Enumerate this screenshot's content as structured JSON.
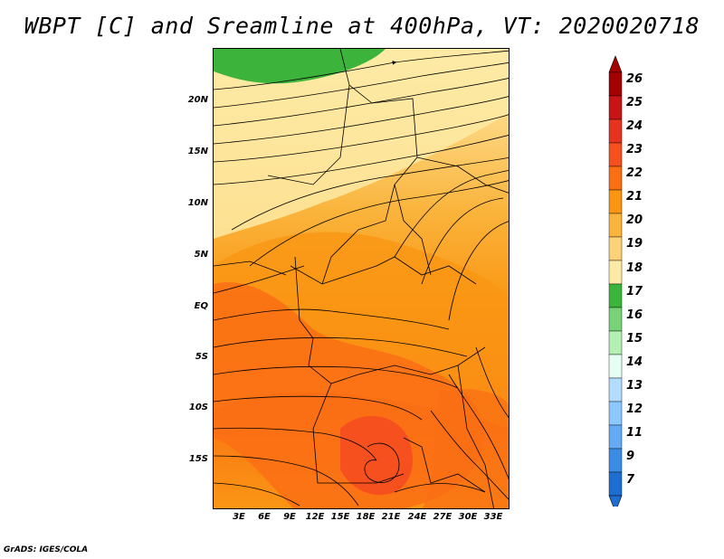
{
  "title": "WBPT [C] and Sreamline at 400hPa, VT: 2020020718",
  "credit": "GrADS: IGES/COLA",
  "map": {
    "lat_ticks": [
      "20N",
      "15N",
      "10N",
      "5N",
      "EQ",
      "5S",
      "10S",
      "15S"
    ],
    "lon_ticks": [
      "3E",
      "6E",
      "9E",
      "12E",
      "15E",
      "18E",
      "21E",
      "24E",
      "27E",
      "30E",
      "33E"
    ]
  },
  "colorbar": {
    "labels": [
      "26",
      "25",
      "24",
      "23",
      "22",
      "21",
      "20",
      "19",
      "18",
      "17",
      "16",
      "15",
      "14",
      "13",
      "12",
      "11",
      "9",
      "7"
    ],
    "colors": [
      "#a50000",
      "#c81414",
      "#e6321e",
      "#f5501e",
      "#fa6e14",
      "#fa9614",
      "#fab43c",
      "#fcd278",
      "#fdeaa5",
      "#3cb43c",
      "#78d278",
      "#b4f0b4",
      "#e6fff5",
      "#b4dcff",
      "#8cc8ff",
      "#64aaf5",
      "#3c8ce6",
      "#1e6ed2"
    ]
  }
}
